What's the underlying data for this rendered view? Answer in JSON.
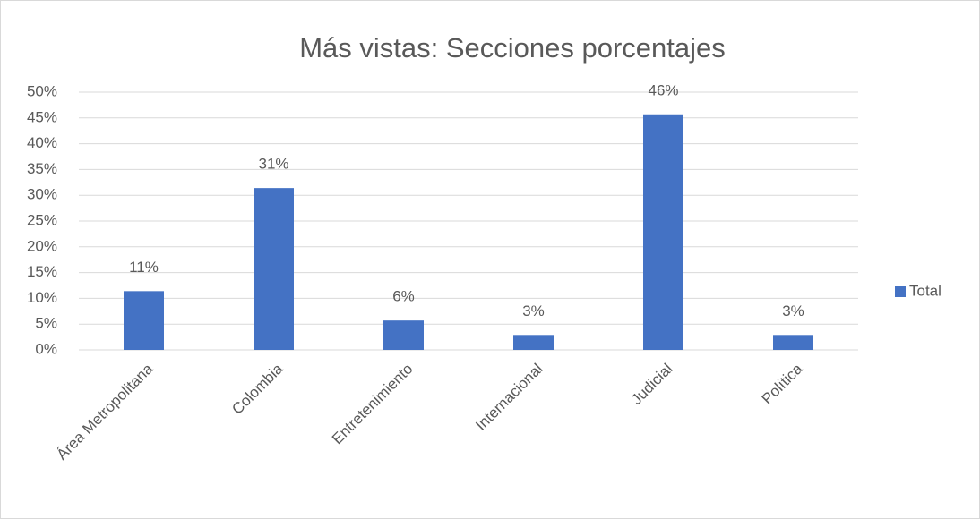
{
  "chart_data": {
    "type": "bar",
    "title": "Más vistas: Secciones porcentajes",
    "categories": [
      "Área Metropolitana",
      "Colombia",
      "Entretenimiento",
      "Internacional",
      "Judicial",
      "Política"
    ],
    "series": [
      {
        "name": "Total",
        "color": "#4472c4",
        "values": [
          11.4,
          31.4,
          5.7,
          2.9,
          45.7,
          2.9
        ],
        "value_labels": [
          "11%",
          "31%",
          "6%",
          "3%",
          "46%",
          "3%"
        ]
      }
    ],
    "ylim": [
      0,
      50
    ],
    "yticks": [
      {
        "value": 0,
        "label": "0%"
      },
      {
        "value": 5,
        "label": "5%"
      },
      {
        "value": 10,
        "label": "10%"
      },
      {
        "value": 15,
        "label": "15%"
      },
      {
        "value": 20,
        "label": "20%"
      },
      {
        "value": 25,
        "label": "25%"
      },
      {
        "value": 30,
        "label": "30%"
      },
      {
        "value": 35,
        "label": "35%"
      },
      {
        "value": 40,
        "label": "40%"
      },
      {
        "value": 45,
        "label": "45%"
      },
      {
        "value": 50,
        "label": "50%"
      }
    ],
    "grid": true,
    "legend": "right"
  }
}
